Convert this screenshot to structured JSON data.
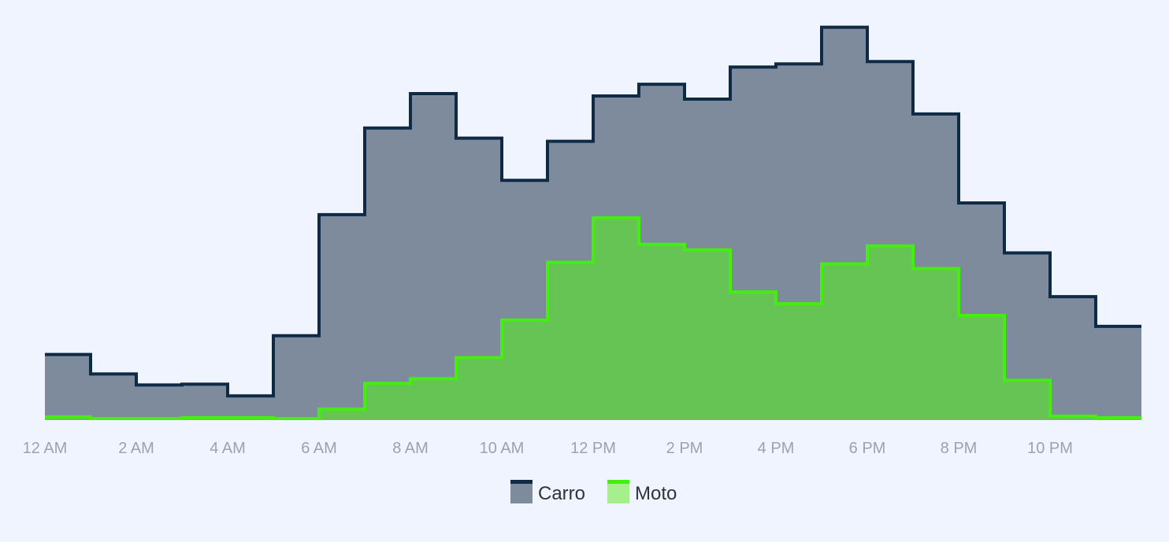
{
  "chart_data": {
    "type": "area",
    "step": true,
    "x_ticks": [
      "12 AM",
      "2 AM",
      "4 AM",
      "6 AM",
      "8 AM",
      "10 AM",
      "12 PM",
      "2 PM",
      "4 PM",
      "6 PM",
      "8 PM",
      "10 PM"
    ],
    "ylim": [
      0,
      500
    ],
    "grid": false,
    "legend": "bottom-center",
    "series": [
      {
        "name": "Carro",
        "line_color": "#0f2a45",
        "fill_color": "#7d8b9d",
        "values": [
          84,
          59,
          45,
          46,
          31,
          108,
          263,
          374,
          418,
          361,
          307,
          357,
          415,
          430,
          411,
          452,
          456,
          503,
          459,
          392,
          278,
          214,
          158,
          120
        ]
      },
      {
        "name": "Moto",
        "line_color": "#44ee11",
        "fill_color": "#66c455",
        "legend_fill": "#a5f08c",
        "values": [
          4,
          2,
          2,
          3,
          3,
          2,
          14,
          47,
          53,
          80,
          128,
          202,
          259,
          225,
          218,
          164,
          149,
          200,
          223,
          194,
          134,
          51,
          5,
          3
        ]
      }
    ]
  }
}
